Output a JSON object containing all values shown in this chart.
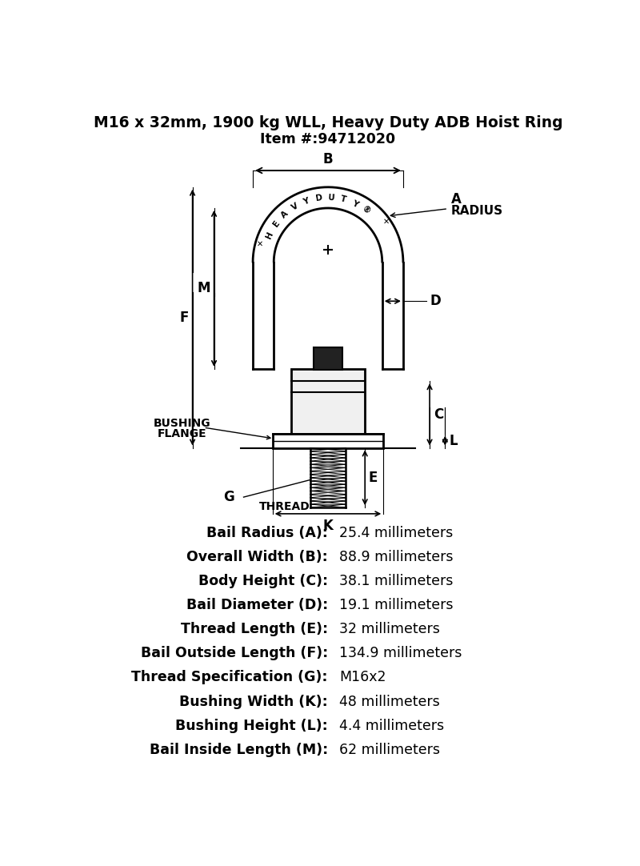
{
  "title_line1": "M16 x 32mm, 1900 kg WLL, Heavy Duty ADB Hoist Ring",
  "title_line2": "Item #:94712020",
  "specs": [
    {
      "label": "Bail Radius (A):",
      "value": "25.4 millimeters"
    },
    {
      "label": "Overall Width (B):",
      "value": "88.9 millimeters"
    },
    {
      "label": "Body Height (C):",
      "value": "38.1 millimeters"
    },
    {
      "label": "Bail Diameter (D):",
      "value": "19.1 millimeters"
    },
    {
      "label": "Thread Length (E):",
      "value": "32 millimeters"
    },
    {
      "label": "Bail Outside Length (F):",
      "value": "134.9 millimeters"
    },
    {
      "label": "Thread Specification (G):",
      "value": "M16x2"
    },
    {
      "label": "Bushing Width (K):",
      "value": "48 millimeters"
    },
    {
      "label": "Bushing Height (L):",
      "value": "4.4 millimeters"
    },
    {
      "label": "Bail Inside Length (M):",
      "value": "62 millimeters"
    }
  ],
  "bg_color": "#ffffff",
  "line_color": "#000000",
  "text_color": "#000000"
}
